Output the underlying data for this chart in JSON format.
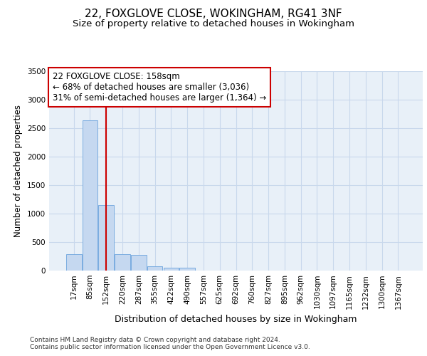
{
  "title1": "22, FOXGLOVE CLOSE, WOKINGHAM, RG41 3NF",
  "title2": "Size of property relative to detached houses in Wokingham",
  "xlabel": "Distribution of detached houses by size in Wokingham",
  "ylabel": "Number of detached properties",
  "bar_labels": [
    "17sqm",
    "85sqm",
    "152sqm",
    "220sqm",
    "287sqm",
    "355sqm",
    "422sqm",
    "490sqm",
    "557sqm",
    "625sqm",
    "692sqm",
    "760sqm",
    "827sqm",
    "895sqm",
    "962sqm",
    "1030sqm",
    "1097sqm",
    "1165sqm",
    "1232sqm",
    "1300sqm",
    "1367sqm"
  ],
  "bar_values": [
    290,
    2640,
    1150,
    290,
    280,
    80,
    55,
    45,
    0,
    0,
    0,
    0,
    0,
    0,
    0,
    0,
    0,
    0,
    0,
    0,
    0
  ],
  "bar_color": "#c5d8f0",
  "bar_edge_color": "#7aace0",
  "grid_color": "#c8d8ec",
  "background_color": "#e8f0f8",
  "vline_x": 2.0,
  "vline_color": "#cc0000",
  "annotation_text": "22 FOXGLOVE CLOSE: 158sqm\n← 68% of detached houses are smaller (3,036)\n31% of semi-detached houses are larger (1,364) →",
  "annotation_box_color": "#ffffff",
  "annotation_box_edge": "#cc0000",
  "ylim": [
    0,
    3500
  ],
  "yticks": [
    0,
    500,
    1000,
    1500,
    2000,
    2500,
    3000,
    3500
  ],
  "footer_text": "Contains HM Land Registry data © Crown copyright and database right 2024.\nContains public sector information licensed under the Open Government Licence v3.0.",
  "title1_fontsize": 11,
  "title2_fontsize": 9.5,
  "xlabel_fontsize": 9,
  "ylabel_fontsize": 8.5,
  "tick_fontsize": 7.5,
  "annotation_fontsize": 8.5,
  "footer_fontsize": 6.5
}
